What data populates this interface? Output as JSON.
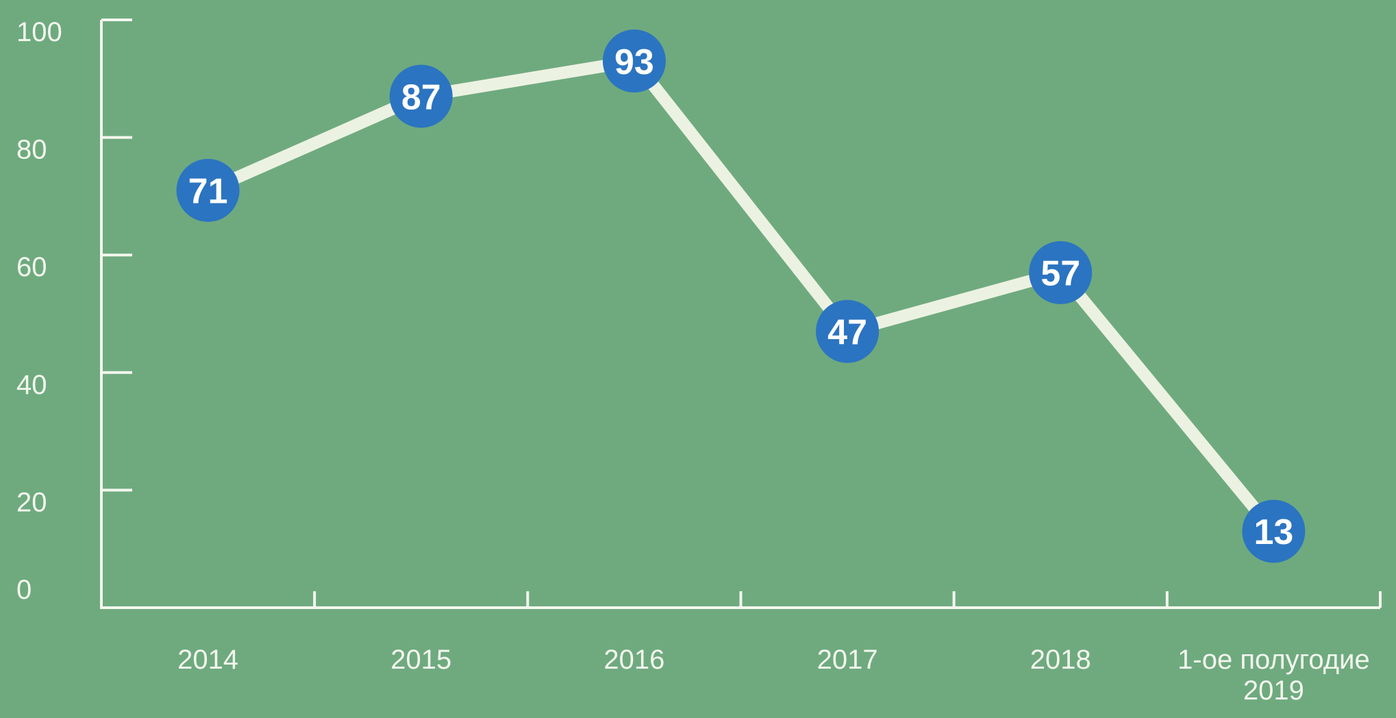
{
  "chart_data": {
    "type": "line",
    "title": "",
    "xlabel": "",
    "ylabel": "",
    "categories": [
      "2014",
      "2015",
      "2016",
      "2017",
      "2018",
      "1-ое полугодие 2019"
    ],
    "category_display_lines": [
      [
        "2014"
      ],
      [
        "2015"
      ],
      [
        "2016"
      ],
      [
        "2017"
      ],
      [
        "2018"
      ],
      [
        "1-ое полугодие",
        "2019"
      ]
    ],
    "values": [
      71,
      87,
      93,
      47,
      57,
      13
    ],
    "data_point_labels": [
      "71",
      "87",
      "93",
      "47",
      "57",
      "13"
    ],
    "ylim": [
      0,
      100
    ],
    "yticks": [
      0,
      20,
      40,
      60,
      80,
      100
    ],
    "ytick_labels": [
      "0",
      "20",
      "40",
      "60",
      "80",
      "100"
    ],
    "grid": false,
    "legend": false,
    "marker_style": "filled circle with value label inside",
    "colors": {
      "background": "#6FAA7F",
      "series_line": "#ECF2E1",
      "marker_fill": "#2B74C1",
      "marker_text": "#FFFFFF",
      "axis": "#F3F7EE",
      "tick_label_text": "#F3F7EE"
    }
  }
}
